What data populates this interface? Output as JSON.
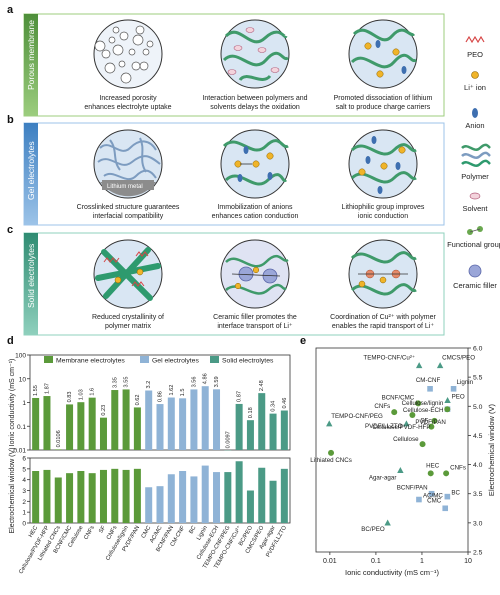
{
  "panel_letters": {
    "a": "a",
    "b": "b",
    "c": "c",
    "d": "d",
    "e": "e"
  },
  "bands": {
    "a": "Porous membrane",
    "b": "Gel electrolytes",
    "c": "Solid electrolytes"
  },
  "panel_a": {
    "captions": [
      [
        "Increased porosity",
        "enhances electrolyte uptake"
      ],
      [
        "Interaction between polymers and",
        "solvents delays the oxidation"
      ],
      [
        "Promoted dissociation of lithium",
        "salt to produce charge carriers"
      ]
    ]
  },
  "panel_b": {
    "captions": [
      [
        "Crosslinked structure guarantees",
        "interfacial compatibility"
      ],
      [
        "Immobilization of anions",
        "enhances cation conduction"
      ],
      [
        "Lithiophilic group improves",
        "ionic conduction"
      ]
    ],
    "metal_label": "Lithium metal"
  },
  "panel_c": {
    "captions": [
      [
        "Reduced crystallinity of",
        "polymer matrix"
      ],
      [
        "Ceramic filler promotes the",
        "interface transport of Li⁺"
      ],
      [
        "Coordination of Cu²⁺ with polymer",
        "enables the rapid transport of Li⁺"
      ]
    ]
  },
  "legend": [
    {
      "label": "PEO",
      "icon": "peo-icon"
    },
    {
      "label": "Li⁺ ion",
      "icon": "li-ion-icon"
    },
    {
      "label": "Anion",
      "icon": "anion-icon"
    },
    {
      "label": "Polymer",
      "icon": "polymer-icon"
    },
    {
      "label": "Solvent",
      "icon": "solvent-icon"
    },
    {
      "label": "Functional group",
      "icon": "functional-group-icon"
    },
    {
      "label": "Ceramic filler",
      "icon": "ceramic-filler-icon"
    }
  ],
  "colors": {
    "membrane": "#5b9a3a",
    "gel": "#8fb3d6",
    "solid": "#4b9a86",
    "bandA": "#6aa84f",
    "bandB": "#5b9bd5",
    "bandC": "#3d9a80",
    "polymer": "#3f9a6a",
    "circle": "#d6e4f2",
    "anion": "#3e6fb0",
    "li": "#f0b429"
  },
  "chart_data": [
    {
      "type": "bar",
      "title": "",
      "legend": [
        "Membrane electrolytes",
        "Gel electrolytes",
        "Solid electrolytes"
      ],
      "ylabel_top": "Ionic conductivity (mS cm⁻¹)",
      "ylabel_bottom": "Electrochemical window (V)",
      "ylim_top": [
        0.01,
        100
      ],
      "yscale_top": "log",
      "ylim_bottom": [
        0,
        6
      ],
      "categories": [
        "HEC",
        "Cellulose/PVDF-HFP",
        "Lithiated CNCs",
        "BCNF/CMC",
        "Cellulose",
        "CNFs",
        "SF",
        "CNFs",
        "Cellulose/lignin",
        "PVDF/PAN",
        "CMC",
        "AC/MC",
        "BCNF/PAN",
        "CM-CNF",
        "BC",
        "Lignin",
        "Cellulose-ECH",
        "TEMPO-CNF/PEG",
        "TEMPO-CNF/Cu²⁺",
        "BC/PEO",
        "CMCS/PEO",
        "Agar-agar",
        "PVDF/LLZTO"
      ],
      "groups": [
        "m",
        "m",
        "m",
        "m",
        "m",
        "m",
        "m",
        "m",
        "m",
        "m",
        "g",
        "g",
        "g",
        "g",
        "g",
        "g",
        "g",
        "s",
        "s",
        "s",
        "s",
        "s",
        "s"
      ],
      "conductivity": [
        1.55,
        1.87,
        0.0106,
        0.83,
        1.03,
        1.6,
        0.23,
        3.35,
        3.55,
        0.62,
        3.2,
        0.86,
        1.62,
        1.5,
        3.56,
        4.86,
        3.59,
        0.0097,
        0.87,
        0.18,
        2.48,
        0.34,
        0.46
      ],
      "conductivity_labels": [
        "1.55",
        "1.87",
        "0.0106",
        "0.83",
        "1.03",
        "1.6",
        "0.23",
        "3.35",
        "3.55",
        "0.62",
        "3.2",
        "0.86",
        "1.62",
        "1.5",
        "3.56",
        "4.86",
        "3.59",
        "0.0097",
        "0.87",
        "0.18",
        "2.48",
        "0.34",
        "0.46"
      ],
      "window": [
        4.8,
        4.9,
        4.2,
        4.6,
        4.8,
        4.6,
        4.9,
        5.0,
        4.9,
        5.0,
        3.3,
        3.4,
        4.5,
        4.8,
        4.3,
        5.3,
        4.7,
        4.7,
        5.7,
        3.0,
        5.1,
        3.9,
        5.0
      ]
    },
    {
      "type": "scatter",
      "title": "",
      "xlabel": "Ionic conductivity (mS cm⁻¹)",
      "ylabel": "Electrochemical window (V)",
      "xlim": [
        0.005,
        10
      ],
      "xscale": "log",
      "ylim": [
        2.5,
        6.0
      ],
      "xticks": [
        "0.01",
        "0.1",
        "1",
        "10"
      ],
      "yticks": [
        "2.5",
        "3.0",
        "3.5",
        "4.0",
        "4.5",
        "5.0",
        "5.5",
        "6.0"
      ],
      "points": [
        {
          "label": "TEMPO-CNF/Cu²⁺",
          "x": 0.87,
          "y": 5.7,
          "group": "s"
        },
        {
          "label": "CMCS/PEO",
          "x": 2.48,
          "y": 5.7,
          "group": "s"
        },
        {
          "label": "CM-CNF",
          "x": 1.5,
          "y": 5.3,
          "group": "g"
        },
        {
          "label": "Lignin",
          "x": 4.86,
          "y": 5.3,
          "group": "g"
        },
        {
          "label": "BCNF/CMC",
          "x": 0.83,
          "y": 5.05,
          "group": "m"
        },
        {
          "label": "PEO",
          "x": 3.6,
          "y": 5.1,
          "group": "s"
        },
        {
          "label": "Cellulose-ECH",
          "x": 3.59,
          "y": 4.95,
          "group": "g"
        },
        {
          "label": "CNFs",
          "x": 0.25,
          "y": 4.9,
          "group": "m"
        },
        {
          "label": "Cellulose/lignin",
          "x": 3.55,
          "y": 4.95,
          "group": "m"
        },
        {
          "label": "TEMPO-CNF/PEG",
          "x": 0.0097,
          "y": 4.7,
          "group": "s"
        },
        {
          "label": "SF",
          "x": 1.6,
          "y": 4.65,
          "group": "m"
        },
        {
          "label": "PVDF/LLZTO",
          "x": 0.46,
          "y": 4.7,
          "group": "s"
        },
        {
          "label": "Cellulose/PVDF-HFP",
          "x": 1.87,
          "y": 4.75,
          "group": "m"
        },
        {
          "label": "PVDF/PAN",
          "x": 0.62,
          "y": 4.85,
          "group": "m"
        },
        {
          "label": "Cellulose",
          "x": 1.03,
          "y": 4.35,
          "group": "m"
        },
        {
          "label": "Lithiated CNCs",
          "x": 0.0106,
          "y": 4.2,
          "group": "m"
        },
        {
          "label": "HEC",
          "x": 1.55,
          "y": 3.85,
          "group": "m"
        },
        {
          "label": "BCNF/PAN",
          "x": 1.62,
          "y": 3.5,
          "group": "g"
        },
        {
          "label": "BC",
          "x": 3.56,
          "y": 3.45,
          "group": "g"
        },
        {
          "label": "CNFs",
          "x": 3.35,
          "y": 3.85,
          "group": "m"
        },
        {
          "label": "CMC",
          "x": 3.2,
          "y": 3.25,
          "group": "g"
        },
        {
          "label": "AC/MC",
          "x": 0.86,
          "y": 3.4,
          "group": "g"
        },
        {
          "label": "Agar-agar",
          "x": 0.34,
          "y": 3.9,
          "group": "s"
        },
        {
          "label": "BC/PEO",
          "x": 0.18,
          "y": 3.0,
          "group": "s"
        }
      ]
    }
  ]
}
